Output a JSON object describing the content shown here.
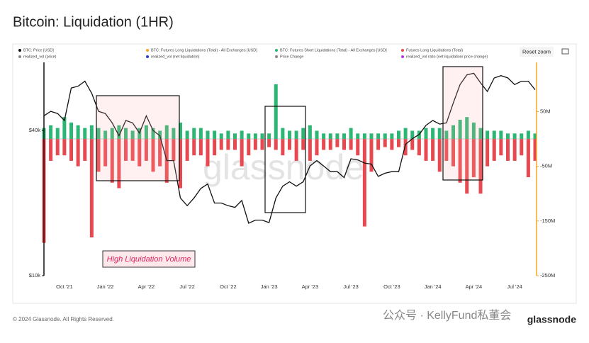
{
  "title": "Bitcoin: Liquidation (1HR)",
  "reset_button": "Reset zoom",
  "footer": "© 2024 Glassnode. All Rights Reserved.",
  "brand": "glassnode",
  "watermark": "glassnode",
  "wechat": "公众号 · KellyFund私董会",
  "chart_data": {
    "type": "line-bar",
    "annotation": "High Liquidation Volume",
    "categories": [
      null,
      null,
      null,
      "Oct '21",
      null,
      null,
      null,
      null,
      null,
      "Jan '22",
      null,
      null,
      null,
      null,
      null,
      "Apr '22",
      null,
      null,
      null,
      null,
      null,
      "Jul '22",
      null,
      null,
      null,
      null,
      null,
      "Oct '22",
      null,
      null,
      null,
      null,
      null,
      "Jan '23",
      null,
      null,
      null,
      null,
      null,
      "Apr '23",
      null,
      null,
      null,
      null,
      null,
      "Jul '23",
      null,
      null,
      null,
      null,
      null,
      "Oct '23",
      null,
      null,
      null,
      null,
      null,
      "Jan '24",
      null,
      null,
      null,
      null,
      null,
      "Apr '24",
      null,
      null,
      null,
      null,
      null,
      "Jul '24",
      null,
      null,
      null
    ],
    "log_scale": true,
    "ylim": [
      10000,
      76600
    ],
    "yticks": [
      {
        "value": 10000,
        "label": "$10k"
      },
      {
        "value": 40000,
        "label": "$40k"
      }
    ],
    "y2lim": [
      -250000000,
      140000000
    ],
    "y2ticks": [
      {
        "value": 50000000,
        "label": "50M"
      },
      {
        "value": -50000000,
        "label": "-50M"
      },
      {
        "value": -150000000,
        "label": "-150M"
      },
      {
        "value": -250000000,
        "label": "-250M"
      }
    ],
    "series": [
      {
        "name": "BTC: Price [USD]",
        "color": "#111111",
        "kind": "line",
        "values": [
          46000,
          48000,
          47000,
          44000,
          60000,
          61000,
          64000,
          57000,
          48000,
          47000,
          43000,
          38000,
          44000,
          43000,
          39000,
          46000,
          40000,
          38000,
          30000,
          30000,
          21000,
          19500,
          21000,
          23000,
          24000,
          20000,
          20000,
          19500,
          19200,
          20500,
          16500,
          17000,
          17000,
          16600,
          21000,
          23500,
          24500,
          23500,
          24500,
          28500,
          30000,
          28500,
          27000,
          27000,
          25500,
          30500,
          30200,
          29300,
          29000,
          25800,
          26600,
          27000,
          27000,
          35000,
          37000,
          38500,
          42000,
          44000,
          42500,
          43000,
          52000,
          62000,
          68000,
          69000,
          63000,
          58000,
          66000,
          67500,
          66000,
          62000,
          64000,
          64000,
          59000
        ]
      },
      {
        "name": "BTC: Futures Short Liquidations (Total) - All Exchanges [USD]",
        "color": "#2bb673",
        "kind": "bar",
        "axis": "y2",
        "values": [
          20000000.0,
          25000000.0,
          20000000.0,
          40000000.0,
          30000000.0,
          25000000.0,
          20000000.0,
          25000000.0,
          20000000.0,
          15000000.0,
          20000000.0,
          25000000.0,
          20000000.0,
          15000000.0,
          20000000.0,
          25000000.0,
          20000000.0,
          15000000.0,
          25000000.0,
          20000000.0,
          30000000.0,
          15000000.0,
          20000000.0,
          20000000.0,
          15000000.0,
          15000000.0,
          10000000.0,
          15000000.0,
          10000000.0,
          15000000.0,
          10000000.0,
          10000000.0,
          10000000.0,
          10000000.0,
          100000000.0,
          20000000.0,
          15000000.0,
          15000000.0,
          20000000.0,
          25000000.0,
          15000000.0,
          10000000.0,
          10000000.0,
          10000000.0,
          10000000.0,
          20000000.0,
          10000000.0,
          10000000.0,
          10000000.0,
          10000000.0,
          10000000.0,
          10000000.0,
          15000000.0,
          20000000.0,
          15000000.0,
          15000000.0,
          20000000.0,
          20000000.0,
          20000000.0,
          15000000.0,
          25000000.0,
          35000000.0,
          40000000.0,
          30000000.0,
          20000000.0,
          15000000.0,
          15000000.0,
          15000000.0,
          10000000.0,
          10000000.0,
          10000000.0,
          15000000.0,
          10000000.0
        ]
      },
      {
        "name": "Futures Long Liquidations (Total)",
        "color": "#e8484f",
        "kind": "bar",
        "axis": "y2",
        "values": [
          -190000000.0,
          -40000000.0,
          -30000000.0,
          -30000000.0,
          -40000000.0,
          -50000000.0,
          -40000000.0,
          -180000000.0,
          -60000000.0,
          -50000000.0,
          -80000000.0,
          -90000000.0,
          -40000000.0,
          -40000000.0,
          -50000000.0,
          -40000000.0,
          -60000000.0,
          -50000000.0,
          -80000000.0,
          -40000000.0,
          -90000000.0,
          -40000000.0,
          -30000000.0,
          -30000000.0,
          -50000000.0,
          -30000000.0,
          -20000000.0,
          -20000000.0,
          -20000000.0,
          -50000000.0,
          -30000000.0,
          -20000000.0,
          -20000000.0,
          -15000000.0,
          -20000000.0,
          -30000000.0,
          -20000000.0,
          -40000000.0,
          -20000000.0,
          -40000000.0,
          -30000000.0,
          -20000000.0,
          -20000000.0,
          -15000000.0,
          -20000000.0,
          -20000000.0,
          -30000000.0,
          -160000000.0,
          -60000000.0,
          -20000000.0,
          -15000000.0,
          -20000000.0,
          -15000000.0,
          -30000000.0,
          -20000000.0,
          -30000000.0,
          -40000000.0,
          -40000000.0,
          -60000000.0,
          -40000000.0,
          -50000000.0,
          -80000000.0,
          -100000000.0,
          -70000000.0,
          -100000000.0,
          -50000000.0,
          -40000000.0,
          -30000000.0,
          -40000000.0,
          -40000000.0,
          -30000000.0,
          -70000000.0,
          -40000000.0
        ]
      }
    ],
    "legend_extra": [
      {
        "name": "BTC: Futures Long Liquidations (Total) - All Exchanges [USD]",
        "color": "#f5a623"
      },
      {
        "name": "realized_vol (price)",
        "color": "#888888"
      },
      {
        "name": "realized_vol (net liquidation)",
        "color": "#2a3bd6"
      },
      {
        "name": "Price Change",
        "color": "#888888"
      },
      {
        "name": "realized_vol ratio (net liquidation/ price change)",
        "color": "#b03adb"
      }
    ]
  }
}
